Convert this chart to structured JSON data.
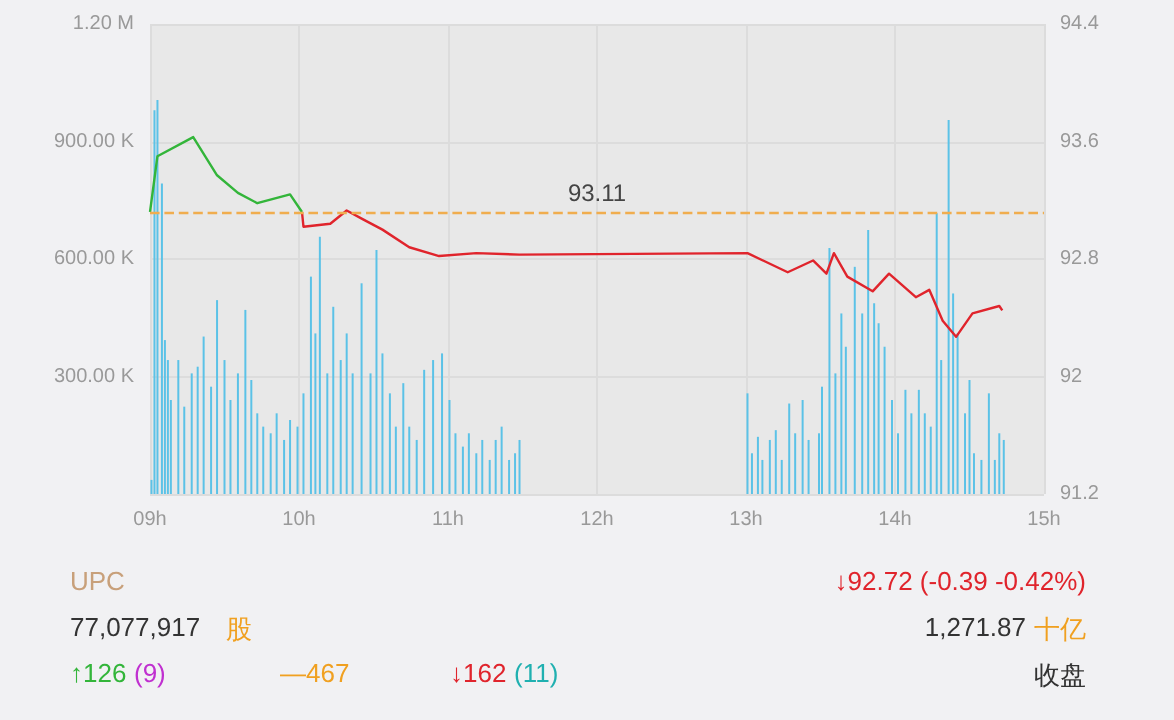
{
  "chart_data": {
    "type": "bar",
    "xlim": [
      9,
      15
    ],
    "xticks": [
      {
        "value": 9,
        "label": "09h"
      },
      {
        "value": 10,
        "label": "10h"
      },
      {
        "value": 11,
        "label": "11h"
      },
      {
        "value": 12,
        "label": "12h"
      },
      {
        "value": 13,
        "label": "13h"
      },
      {
        "value": 14,
        "label": "14h"
      },
      {
        "value": 15,
        "label": "15h"
      }
    ],
    "ylim": [
      0,
      1200000
    ],
    "yticks": [
      {
        "value": 0,
        "label": null
      },
      {
        "value": 300000,
        "label": "300.00 K"
      },
      {
        "value": 600000,
        "label": "600.00 K"
      },
      {
        "value": 900000,
        "label": "900.00 K"
      },
      {
        "value": 1200000,
        "label": "1.20 M"
      }
    ],
    "y2lim": [
      91.2,
      94.4
    ],
    "y2ticks": [
      91.2,
      92,
      92.8,
      93.6,
      94.4
    ],
    "grid": true,
    "series": [
      {
        "color": "#5bc2e7",
        "x": [
          9.01,
          9.03,
          9.05,
          9.08,
          9.1,
          9.12,
          9.14,
          9.19,
          9.23,
          9.28,
          9.32,
          9.36,
          9.41,
          9.45,
          9.5,
          9.54,
          9.59,
          9.64,
          9.68,
          9.72,
          9.76,
          9.81,
          9.85,
          9.9,
          9.94,
          9.99,
          10.03,
          10.08,
          10.11,
          10.14,
          10.19,
          10.23,
          10.28,
          10.32,
          10.36,
          10.42,
          10.48,
          10.52,
          10.56,
          10.61,
          10.65,
          10.7,
          10.74,
          10.79,
          10.84,
          10.9,
          10.96,
          11.01,
          11.05,
          11.1,
          11.14,
          11.19,
          11.23,
          11.28,
          11.32,
          11.36,
          11.41,
          11.45,
          11.48,
          13.01,
          13.04,
          13.08,
          13.11,
          13.16,
          13.2,
          13.24,
          13.29,
          13.33,
          13.38,
          13.42,
          13.49,
          13.51,
          13.56,
          13.6,
          13.64,
          13.67,
          13.73,
          13.78,
          13.82,
          13.86,
          13.89,
          13.93,
          13.98,
          14.02,
          14.07,
          14.11,
          14.16,
          14.2,
          14.24,
          14.28,
          14.31,
          14.36,
          14.39,
          14.42,
          14.47,
          14.5,
          14.53,
          14.58,
          14.63,
          14.67,
          14.7,
          14.73
        ],
        "values": [
          36000,
          980000,
          1006000,
          793000,
          393000,
          342000,
          240000,
          342000,
          223000,
          308000,
          325000,
          402000,
          274000,
          495000,
          342000,
          240000,
          308000,
          470000,
          291000,
          206000,
          172000,
          155000,
          206000,
          138000,
          189000,
          172000,
          257000,
          555000,
          410000,
          657000,
          308000,
          478000,
          342000,
          410000,
          308000,
          538000,
          308000,
          623000,
          359000,
          257000,
          172000,
          283000,
          172000,
          138000,
          317000,
          342000,
          359000,
          240000,
          155000,
          121000,
          155000,
          104000,
          138000,
          87000,
          138000,
          172000,
          87000,
          104000,
          138000,
          257000,
          104000,
          146000,
          87000,
          138000,
          163000,
          87000,
          231000,
          155000,
          240000,
          138000,
          155000,
          274000,
          628000,
          308000,
          461000,
          376000,
          580000,
          461000,
          674000,
          487000,
          436000,
          376000,
          240000,
          155000,
          266000,
          206000,
          266000,
          206000,
          172000,
          717000,
          342000,
          955000,
          512000,
          410000,
          206000,
          291000,
          104000,
          87000,
          257000,
          87000,
          155000,
          138000
        ]
      },
      {
        "type": "line",
        "axis": "y2",
        "color": "#33b53a",
        "x": [
          9.0,
          9.05,
          9.29,
          9.45,
          9.59,
          9.72,
          9.94,
          10.02
        ],
        "values": [
          93.12,
          93.5,
          93.63,
          93.37,
          93.25,
          93.18,
          93.24,
          93.12
        ]
      },
      {
        "type": "line",
        "axis": "y2",
        "color": "#e0242c",
        "x": [
          10.02,
          10.03,
          10.21,
          10.32,
          10.43,
          10.56,
          10.74,
          10.94,
          11.19,
          11.48,
          13.01,
          13.28,
          13.45,
          13.54,
          13.59,
          13.68,
          13.85,
          13.96,
          14.14,
          14.23,
          14.32,
          14.41,
          14.52,
          14.7,
          14.72
        ],
        "values": [
          93.12,
          93.02,
          93.04,
          93.13,
          93.07,
          93.0,
          92.88,
          92.82,
          92.84,
          92.83,
          92.84,
          92.71,
          92.79,
          92.7,
          92.84,
          92.68,
          92.58,
          92.7,
          92.54,
          92.59,
          92.38,
          92.27,
          92.43,
          92.48,
          92.45
        ]
      }
    ],
    "ref_lines": [
      {
        "axis": "y2",
        "value": 93.11,
        "label": "93.11",
        "color": "#f0ad4e",
        "line_style": "dashed"
      }
    ],
    "annotations": [
      "UPC",
      "↓92.72 (-0.39 -0.42%)",
      "77,077,917",
      "股",
      "1,271.87",
      "十亿",
      "↑126",
      "(9)",
      "—467",
      "↓162",
      "(11)",
      "收盘"
    ]
  }
}
